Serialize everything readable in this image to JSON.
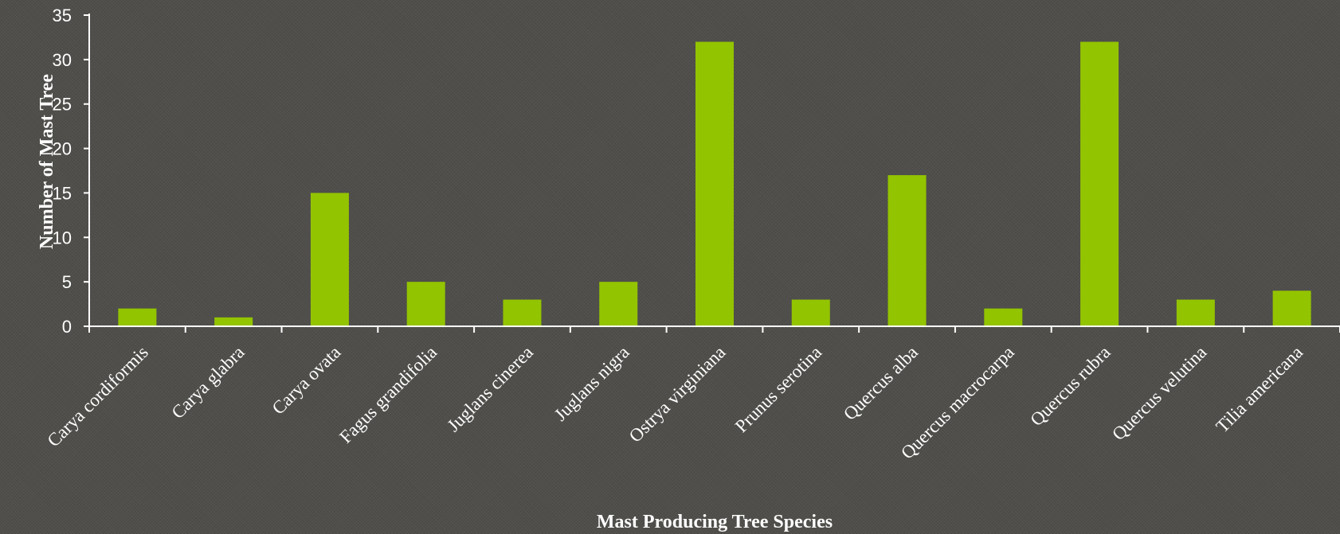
{
  "chart_data": {
    "type": "bar",
    "xlabel": "Mast Producing Tree Species",
    "ylabel": "Number of Mast Tree",
    "categories": [
      "Carya cordiformis",
      "Carya glabra",
      "Carya ovata",
      "Fagus grandifolia",
      "Juglans cinerea",
      "Juglans nigra",
      "Ostrya virginiana",
      "Prunus serotina",
      "Quercus alba",
      "Quercus macrocarpa",
      "Quercus rubra",
      "Quercus velutina",
      "Tilia americana"
    ],
    "values": [
      2,
      1,
      15,
      5,
      3,
      5,
      32,
      3,
      17,
      2,
      32,
      3,
      4
    ],
    "ylim": [
      0,
      35
    ],
    "yticks": [
      0,
      5,
      10,
      15,
      20,
      25,
      30,
      35
    ],
    "grid": false,
    "legend": "none",
    "colors": {
      "bar": "#93c400",
      "axis": "#ffffff",
      "text": "#ffffff",
      "background": "#4f4e4a"
    }
  }
}
